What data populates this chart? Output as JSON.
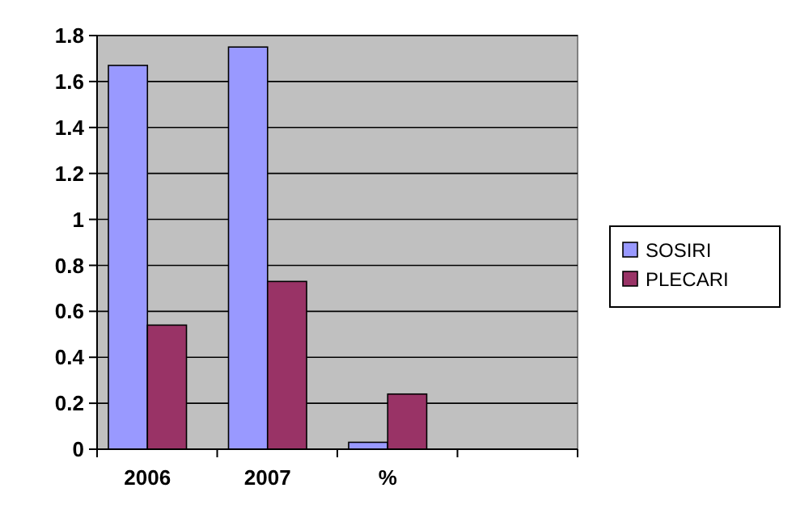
{
  "chart_data": {
    "type": "bar",
    "categories": [
      "2006",
      "2007",
      "%",
      null
    ],
    "series": [
      {
        "name": "SOSIRI",
        "color": "#9999ff",
        "values": [
          1.67,
          1.75,
          0.03,
          null
        ]
      },
      {
        "name": "PLECARI",
        "color": "#993366",
        "values": [
          0.54,
          0.73,
          0.24,
          null
        ]
      }
    ],
    "ylim": [
      0,
      1.8
    ],
    "yticks": [
      0,
      0.2,
      0.4,
      0.6,
      0.8,
      1,
      1.2,
      1.4,
      1.6,
      1.8
    ],
    "grid": "y",
    "legend": "right"
  }
}
